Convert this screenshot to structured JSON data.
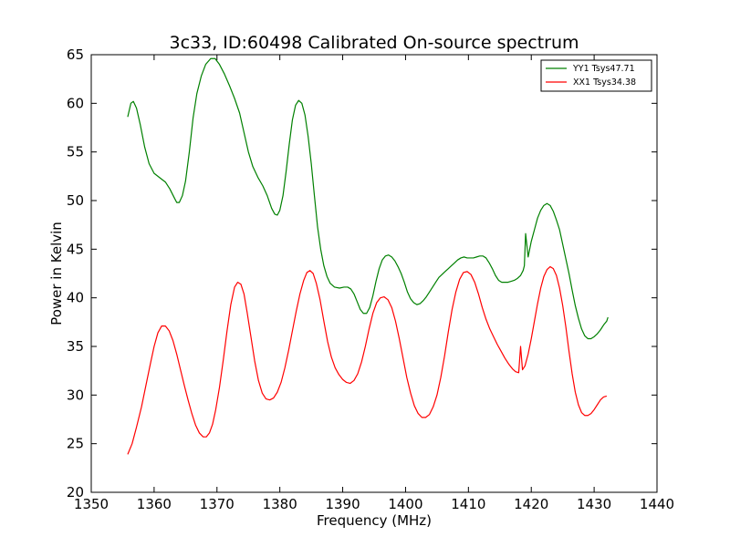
{
  "chart_data": {
    "type": "line",
    "title": "3c33, ID:60498 Calibrated On-source spectrum",
    "xlabel": "Frequency (MHz)",
    "ylabel": "Power in Kelvin",
    "xlim": [
      1350,
      1440
    ],
    "ylim": [
      20,
      65
    ],
    "xticks": [
      1350,
      1360,
      1370,
      1380,
      1390,
      1400,
      1410,
      1420,
      1430,
      1440
    ],
    "yticks": [
      20,
      25,
      30,
      35,
      40,
      45,
      50,
      55,
      60,
      65
    ],
    "grid": false,
    "legend_position": "top-right",
    "series": [
      {
        "name": "YY1 Tsys47.71",
        "color": "#008000",
        "points": [
          [
            1355.8,
            58.6
          ],
          [
            1356.3,
            60.0
          ],
          [
            1356.7,
            60.2
          ],
          [
            1357.2,
            59.5
          ],
          [
            1357.8,
            57.8
          ],
          [
            1358.5,
            55.5
          ],
          [
            1359.2,
            53.8
          ],
          [
            1360.0,
            52.8
          ],
          [
            1361.0,
            52.3
          ],
          [
            1361.8,
            51.9
          ],
          [
            1362.5,
            51.2
          ],
          [
            1363.2,
            50.3
          ],
          [
            1363.6,
            49.8
          ],
          [
            1364.0,
            49.8
          ],
          [
            1364.5,
            50.5
          ],
          [
            1365.0,
            52.0
          ],
          [
            1365.6,
            55.0
          ],
          [
            1366.2,
            58.5
          ],
          [
            1366.8,
            61.0
          ],
          [
            1367.5,
            62.8
          ],
          [
            1368.2,
            64.0
          ],
          [
            1369.0,
            64.6
          ],
          [
            1369.7,
            64.6
          ],
          [
            1370.4,
            64.0
          ],
          [
            1371.2,
            63.0
          ],
          [
            1372.0,
            61.8
          ],
          [
            1372.8,
            60.5
          ],
          [
            1373.6,
            59.0
          ],
          [
            1374.3,
            57.0
          ],
          [
            1375.0,
            55.0
          ],
          [
            1375.7,
            53.5
          ],
          [
            1376.5,
            52.4
          ],
          [
            1377.3,
            51.5
          ],
          [
            1378.0,
            50.5
          ],
          [
            1378.7,
            49.2
          ],
          [
            1379.2,
            48.6
          ],
          [
            1379.6,
            48.5
          ],
          [
            1380.0,
            49.0
          ],
          [
            1380.5,
            50.5
          ],
          [
            1381.0,
            53.0
          ],
          [
            1381.5,
            55.8
          ],
          [
            1382.0,
            58.3
          ],
          [
            1382.5,
            59.8
          ],
          [
            1383.0,
            60.3
          ],
          [
            1383.5,
            60.0
          ],
          [
            1384.0,
            58.8
          ],
          [
            1384.5,
            56.6
          ],
          [
            1385.0,
            53.8
          ],
          [
            1385.5,
            50.5
          ],
          [
            1386.0,
            47.3
          ],
          [
            1386.5,
            45.0
          ],
          [
            1387.0,
            43.3
          ],
          [
            1387.5,
            42.2
          ],
          [
            1388.0,
            41.5
          ],
          [
            1388.7,
            41.1
          ],
          [
            1389.5,
            41.0
          ],
          [
            1390.2,
            41.1
          ],
          [
            1390.8,
            41.1
          ],
          [
            1391.3,
            40.9
          ],
          [
            1391.8,
            40.4
          ],
          [
            1392.3,
            39.6
          ],
          [
            1392.8,
            38.8
          ],
          [
            1393.3,
            38.4
          ],
          [
            1393.8,
            38.4
          ],
          [
            1394.3,
            39.0
          ],
          [
            1394.8,
            40.2
          ],
          [
            1395.3,
            41.7
          ],
          [
            1395.8,
            43.0
          ],
          [
            1396.3,
            43.9
          ],
          [
            1396.8,
            44.3
          ],
          [
            1397.3,
            44.4
          ],
          [
            1397.8,
            44.2
          ],
          [
            1398.3,
            43.8
          ],
          [
            1398.8,
            43.2
          ],
          [
            1399.3,
            42.5
          ],
          [
            1399.8,
            41.6
          ],
          [
            1400.3,
            40.6
          ],
          [
            1400.8,
            39.9
          ],
          [
            1401.3,
            39.5
          ],
          [
            1401.8,
            39.3
          ],
          [
            1402.3,
            39.4
          ],
          [
            1402.8,
            39.7
          ],
          [
            1403.3,
            40.1
          ],
          [
            1403.8,
            40.6
          ],
          [
            1404.3,
            41.1
          ],
          [
            1404.8,
            41.6
          ],
          [
            1405.3,
            42.1
          ],
          [
            1405.8,
            42.4
          ],
          [
            1406.3,
            42.7
          ],
          [
            1406.8,
            43.0
          ],
          [
            1407.3,
            43.3
          ],
          [
            1407.8,
            43.6
          ],
          [
            1408.3,
            43.9
          ],
          [
            1408.8,
            44.1
          ],
          [
            1409.3,
            44.2
          ],
          [
            1409.8,
            44.1
          ],
          [
            1410.3,
            44.1
          ],
          [
            1410.8,
            44.1
          ],
          [
            1411.3,
            44.2
          ],
          [
            1411.8,
            44.3
          ],
          [
            1412.3,
            44.3
          ],
          [
            1412.8,
            44.1
          ],
          [
            1413.3,
            43.6
          ],
          [
            1413.8,
            43.0
          ],
          [
            1414.3,
            42.3
          ],
          [
            1414.8,
            41.8
          ],
          [
            1415.3,
            41.6
          ],
          [
            1415.8,
            41.6
          ],
          [
            1416.3,
            41.6
          ],
          [
            1416.8,
            41.7
          ],
          [
            1417.3,
            41.8
          ],
          [
            1417.8,
            42.0
          ],
          [
            1418.3,
            42.3
          ],
          [
            1418.7,
            42.8
          ],
          [
            1418.9,
            43.3
          ],
          [
            1419.1,
            46.6
          ],
          [
            1419.5,
            44.2
          ],
          [
            1420.0,
            45.8
          ],
          [
            1420.5,
            47.0
          ],
          [
            1421.0,
            48.2
          ],
          [
            1421.5,
            49.0
          ],
          [
            1422.0,
            49.5
          ],
          [
            1422.5,
            49.7
          ],
          [
            1423.0,
            49.5
          ],
          [
            1423.5,
            48.9
          ],
          [
            1424.0,
            48.0
          ],
          [
            1424.5,
            47.0
          ],
          [
            1425.0,
            45.5
          ],
          [
            1425.5,
            44.0
          ],
          [
            1426.0,
            42.5
          ],
          [
            1426.5,
            40.8
          ],
          [
            1427.0,
            39.2
          ],
          [
            1427.5,
            37.9
          ],
          [
            1428.0,
            36.8
          ],
          [
            1428.5,
            36.1
          ],
          [
            1429.0,
            35.8
          ],
          [
            1429.5,
            35.8
          ],
          [
            1430.0,
            36.0
          ],
          [
            1430.5,
            36.3
          ],
          [
            1431.0,
            36.7
          ],
          [
            1431.5,
            37.2
          ],
          [
            1432.0,
            37.6
          ],
          [
            1432.2,
            38.0
          ]
        ]
      },
      {
        "name": "XX1 Tsys34.38",
        "color": "#ff0000",
        "points": [
          [
            1355.8,
            23.9
          ],
          [
            1356.5,
            25.0
          ],
          [
            1357.2,
            26.7
          ],
          [
            1358.0,
            28.8
          ],
          [
            1358.7,
            31.0
          ],
          [
            1359.4,
            33.2
          ],
          [
            1360.0,
            35.0
          ],
          [
            1360.6,
            36.4
          ],
          [
            1361.2,
            37.1
          ],
          [
            1361.8,
            37.1
          ],
          [
            1362.4,
            36.6
          ],
          [
            1363.0,
            35.6
          ],
          [
            1363.6,
            34.2
          ],
          [
            1364.2,
            32.6
          ],
          [
            1364.8,
            31.0
          ],
          [
            1365.4,
            29.5
          ],
          [
            1366.0,
            28.1
          ],
          [
            1366.6,
            26.9
          ],
          [
            1367.2,
            26.1
          ],
          [
            1367.8,
            25.7
          ],
          [
            1368.3,
            25.7
          ],
          [
            1368.8,
            26.1
          ],
          [
            1369.3,
            27.0
          ],
          [
            1369.8,
            28.5
          ],
          [
            1370.4,
            30.8
          ],
          [
            1371.0,
            33.6
          ],
          [
            1371.6,
            36.6
          ],
          [
            1372.2,
            39.3
          ],
          [
            1372.8,
            41.1
          ],
          [
            1373.3,
            41.6
          ],
          [
            1373.8,
            41.4
          ],
          [
            1374.3,
            40.4
          ],
          [
            1374.8,
            38.5
          ],
          [
            1375.4,
            36.0
          ],
          [
            1376.0,
            33.5
          ],
          [
            1376.6,
            31.5
          ],
          [
            1377.2,
            30.2
          ],
          [
            1377.8,
            29.6
          ],
          [
            1378.4,
            29.5
          ],
          [
            1379.0,
            29.7
          ],
          [
            1379.6,
            30.3
          ],
          [
            1380.2,
            31.3
          ],
          [
            1380.8,
            32.8
          ],
          [
            1381.4,
            34.6
          ],
          [
            1382.0,
            36.6
          ],
          [
            1382.6,
            38.6
          ],
          [
            1383.2,
            40.4
          ],
          [
            1383.8,
            41.8
          ],
          [
            1384.3,
            42.6
          ],
          [
            1384.8,
            42.8
          ],
          [
            1385.3,
            42.5
          ],
          [
            1385.8,
            41.5
          ],
          [
            1386.4,
            39.8
          ],
          [
            1387.0,
            37.6
          ],
          [
            1387.6,
            35.5
          ],
          [
            1388.2,
            33.9
          ],
          [
            1388.8,
            32.8
          ],
          [
            1389.4,
            32.1
          ],
          [
            1390.0,
            31.6
          ],
          [
            1390.6,
            31.3
          ],
          [
            1391.2,
            31.2
          ],
          [
            1391.8,
            31.5
          ],
          [
            1392.4,
            32.2
          ],
          [
            1393.0,
            33.4
          ],
          [
            1393.6,
            35.0
          ],
          [
            1394.2,
            36.8
          ],
          [
            1394.8,
            38.4
          ],
          [
            1395.4,
            39.5
          ],
          [
            1396.0,
            40.0
          ],
          [
            1396.6,
            40.1
          ],
          [
            1397.2,
            39.8
          ],
          [
            1397.8,
            39.0
          ],
          [
            1398.4,
            37.6
          ],
          [
            1399.0,
            35.8
          ],
          [
            1399.6,
            33.8
          ],
          [
            1400.2,
            31.8
          ],
          [
            1400.8,
            30.2
          ],
          [
            1401.4,
            28.9
          ],
          [
            1402.0,
            28.1
          ],
          [
            1402.6,
            27.7
          ],
          [
            1403.2,
            27.7
          ],
          [
            1403.8,
            28.0
          ],
          [
            1404.4,
            28.8
          ],
          [
            1405.0,
            30.0
          ],
          [
            1405.6,
            31.8
          ],
          [
            1406.2,
            34.0
          ],
          [
            1406.8,
            36.5
          ],
          [
            1407.4,
            38.8
          ],
          [
            1408.0,
            40.6
          ],
          [
            1408.6,
            41.9
          ],
          [
            1409.2,
            42.6
          ],
          [
            1409.8,
            42.7
          ],
          [
            1410.4,
            42.4
          ],
          [
            1411.0,
            41.6
          ],
          [
            1411.6,
            40.4
          ],
          [
            1412.2,
            39.0
          ],
          [
            1412.8,
            37.8
          ],
          [
            1413.4,
            36.8
          ],
          [
            1414.0,
            36.0
          ],
          [
            1414.6,
            35.2
          ],
          [
            1415.2,
            34.5
          ],
          [
            1415.8,
            33.8
          ],
          [
            1416.4,
            33.2
          ],
          [
            1417.0,
            32.7
          ],
          [
            1417.5,
            32.4
          ],
          [
            1418.0,
            32.3
          ],
          [
            1418.3,
            35.0
          ],
          [
            1418.6,
            32.6
          ],
          [
            1419.0,
            33.0
          ],
          [
            1419.5,
            34.2
          ],
          [
            1420.0,
            35.8
          ],
          [
            1420.5,
            37.6
          ],
          [
            1421.0,
            39.4
          ],
          [
            1421.5,
            41.0
          ],
          [
            1422.0,
            42.2
          ],
          [
            1422.5,
            42.9
          ],
          [
            1423.0,
            43.2
          ],
          [
            1423.5,
            43.0
          ],
          [
            1424.0,
            42.3
          ],
          [
            1424.5,
            41.0
          ],
          [
            1425.0,
            39.2
          ],
          [
            1425.5,
            37.0
          ],
          [
            1426.0,
            34.5
          ],
          [
            1426.5,
            32.2
          ],
          [
            1427.0,
            30.3
          ],
          [
            1427.5,
            29.0
          ],
          [
            1428.0,
            28.2
          ],
          [
            1428.5,
            27.9
          ],
          [
            1429.0,
            27.9
          ],
          [
            1429.5,
            28.1
          ],
          [
            1430.0,
            28.5
          ],
          [
            1430.5,
            29.0
          ],
          [
            1431.0,
            29.5
          ],
          [
            1431.5,
            29.8
          ],
          [
            1432.0,
            29.9
          ]
        ]
      }
    ]
  }
}
